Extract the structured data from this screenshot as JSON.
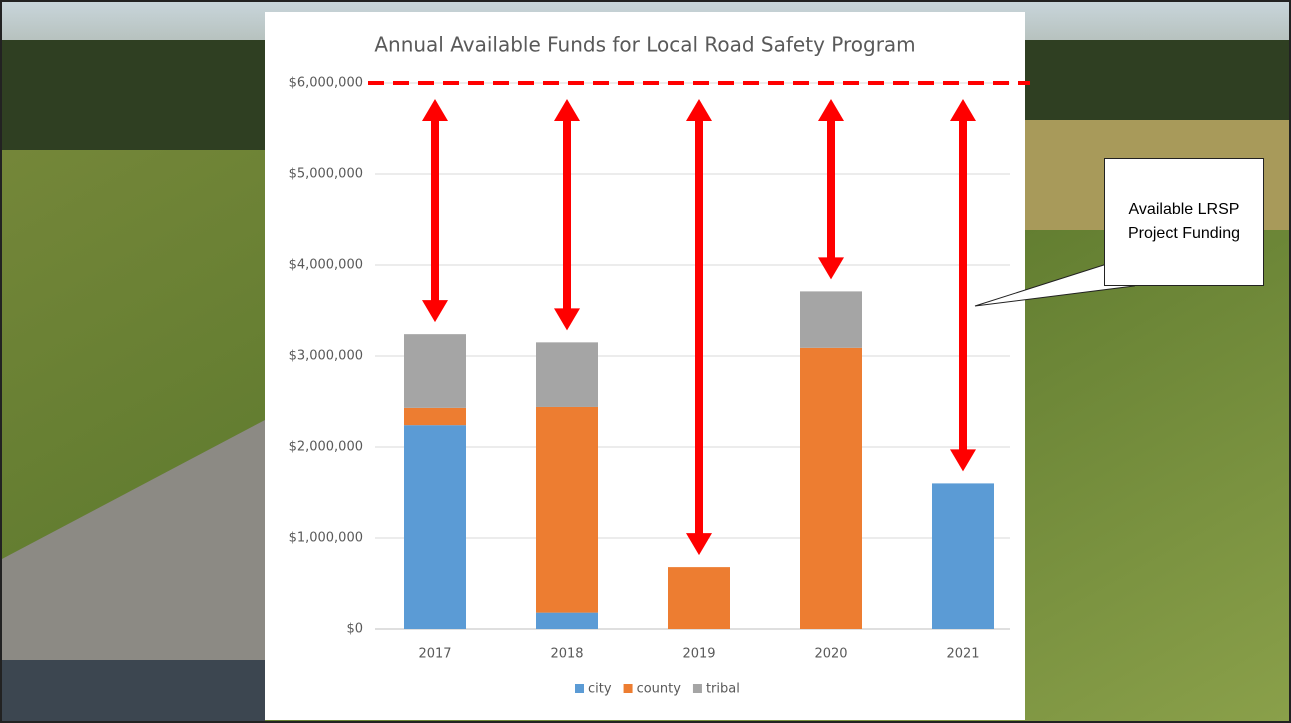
{
  "chart_data": {
    "type": "stacked_bar",
    "title": "Annual Available Funds for Local Road Safety Program",
    "categories": [
      "2017",
      "2018",
      "2019",
      "2020",
      "2021"
    ],
    "series": [
      {
        "name": "city",
        "color": "#5b9bd5",
        "values": [
          2240000,
          180000,
          0,
          0,
          1600000
        ]
      },
      {
        "name": "county",
        "color": "#ed7d31",
        "values": [
          190000,
          2260000,
          680000,
          3090000,
          0
        ]
      },
      {
        "name": "tribal",
        "color": "#a5a5a5",
        "values": [
          810000,
          710000,
          0,
          620000,
          0
        ]
      }
    ],
    "ylim": [
      0,
      6000000
    ],
    "yticks": [
      {
        "value": 0,
        "label": "$0"
      },
      {
        "value": 1000000,
        "label": "$1,000,000"
      },
      {
        "value": 2000000,
        "label": "$2,000,000"
      },
      {
        "value": 3000000,
        "label": "$3,000,000"
      },
      {
        "value": 4000000,
        "label": "$4,000,000"
      },
      {
        "value": 5000000,
        "label": "$5,000,000"
      },
      {
        "value": 6000000,
        "label": "$6,000,000"
      }
    ],
    "grid": true,
    "target_line": 6000000,
    "target_color": "#ff0000",
    "callout": "Available LRSP Project Funding"
  }
}
